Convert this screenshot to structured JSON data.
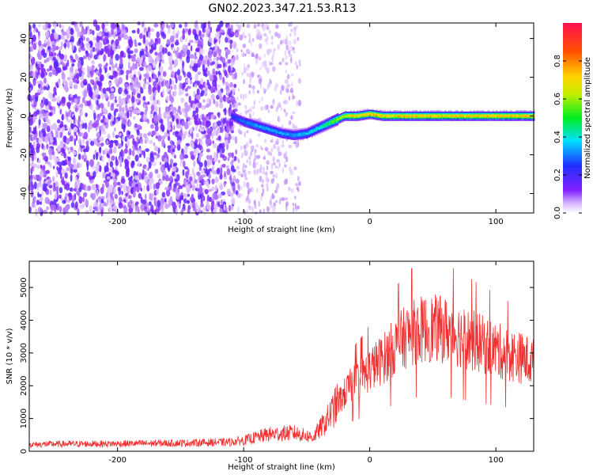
{
  "figure": {
    "title": "GN02.2023.347.21.53.R13"
  },
  "chart_data": [
    {
      "type": "heatmap",
      "xlabel": "Height of straight line (km)",
      "ylabel": "Frequency (Hz)",
      "xlim": [
        -270,
        130
      ],
      "ylim": [
        -50,
        48
      ],
      "xticks": [
        -200,
        -100,
        0,
        100
      ],
      "yticks": [
        -40,
        -20,
        0,
        20,
        40
      ],
      "colorbar": {
        "label": "Normalized spectral amplitude",
        "range": [
          0.0,
          1.0
        ],
        "ticks": [
          0.0,
          0.2,
          0.4,
          0.6,
          0.8
        ]
      },
      "ridge": {
        "x": [
          -110,
          -100,
          -90,
          -80,
          -70,
          -60,
          -50,
          -40,
          -30,
          -20,
          -10,
          0,
          10,
          20,
          50,
          100,
          130
        ],
        "frequency": [
          0,
          -3,
          -5,
          -7,
          -9,
          -10,
          -9,
          -6,
          -3,
          0,
          0,
          1,
          0,
          0,
          0,
          0,
          0
        ],
        "amplitude": [
          0.25,
          0.3,
          0.35,
          0.35,
          0.35,
          0.35,
          0.38,
          0.42,
          0.55,
          0.7,
          0.75,
          0.75,
          0.75,
          0.75,
          0.75,
          0.75,
          0.75
        ]
      },
      "noise": {
        "dense_x_range": [
          -270,
          -105
        ],
        "sparse_x_range": [
          -105,
          -55
        ],
        "amplitude": 0.15
      }
    },
    {
      "type": "line",
      "xlabel": "Height of straight line (km)",
      "ylabel": "SNR (10 * v/v)",
      "xlim": [
        -270,
        130
      ],
      "ylim": [
        0,
        5800
      ],
      "xticks": [
        -200,
        -100,
        0,
        100
      ],
      "yticks": [
        0,
        1000,
        2000,
        3000,
        4000,
        5000
      ],
      "series": [
        {
          "color": "#ef3030",
          "x": [
            -270,
            -250,
            -200,
            -150,
            -110,
            -100,
            -80,
            -60,
            -45,
            -35,
            -25,
            -15,
            -5,
            0,
            10,
            20,
            30,
            40,
            50,
            60,
            70,
            80,
            90,
            100,
            110,
            120,
            130
          ],
          "y": [
            200,
            220,
            230,
            250,
            280,
            330,
            520,
            560,
            420,
            900,
            1500,
            2000,
            2300,
            2500,
            2800,
            3200,
            3550,
            3700,
            3750,
            3700,
            3550,
            3400,
            3250,
            3100,
            2950,
            2850,
            2700
          ]
        }
      ]
    }
  ]
}
